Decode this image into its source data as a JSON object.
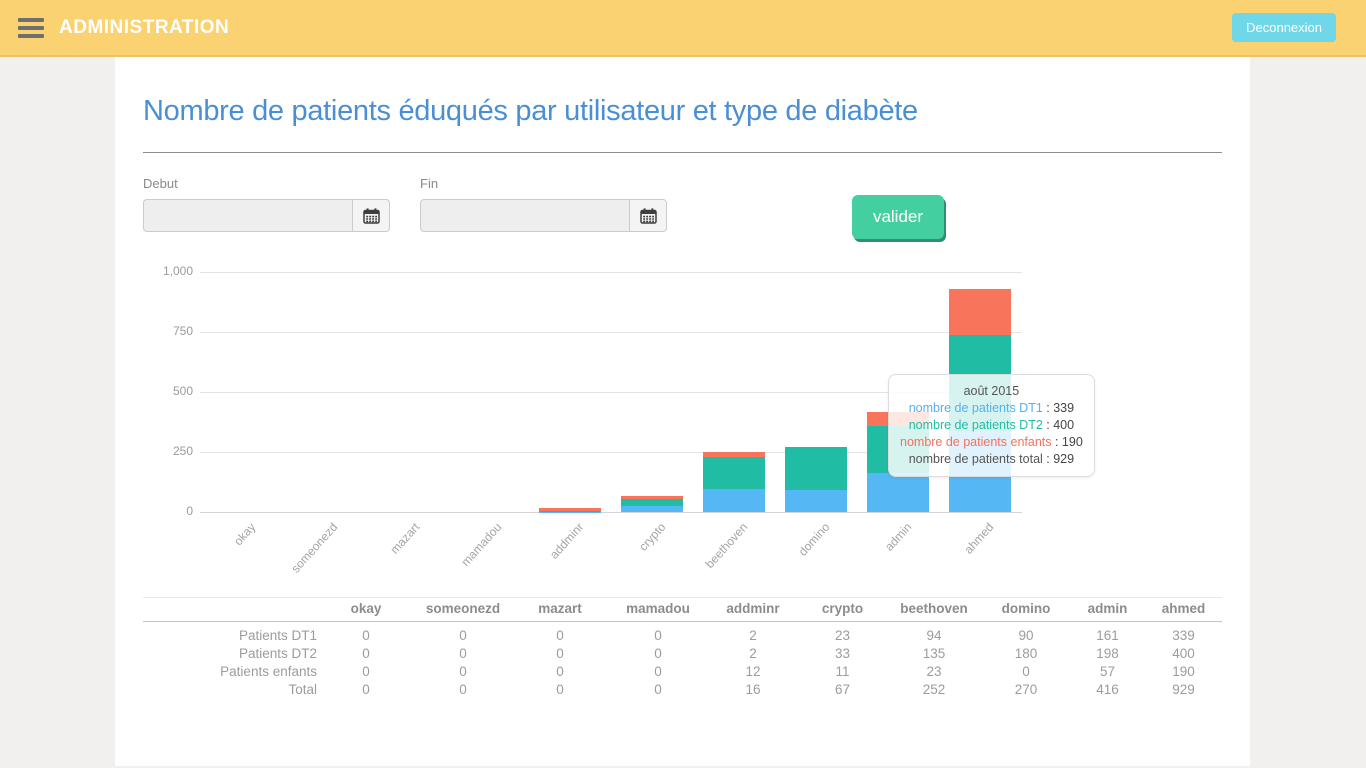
{
  "header": {
    "app_title": "ADMINISTRATION",
    "logout_label": "Deconnexion"
  },
  "page": {
    "title": "Nombre de patients éduqués par utilisateur et type de diabète"
  },
  "filters": {
    "debut": {
      "label": "Debut",
      "value": ""
    },
    "fin": {
      "label": "Fin",
      "value": ""
    },
    "submit_label": "valider"
  },
  "chart_data": {
    "type": "bar",
    "stacked": true,
    "title": "",
    "xlabel": "",
    "ylabel": "",
    "categories": [
      "okay",
      "someonezd",
      "mazart",
      "mamadou",
      "addminr",
      "crypto",
      "beethoven",
      "domino",
      "admin",
      "ahmed"
    ],
    "series": [
      {
        "name": "nombre de patients DT1",
        "color": "#55B7F3",
        "values": [
          0,
          0,
          0,
          0,
          2,
          23,
          94,
          90,
          161,
          339
        ]
      },
      {
        "name": "nombre de patients DT2",
        "color": "#20BCA4",
        "values": [
          0,
          0,
          0,
          0,
          2,
          33,
          135,
          180,
          198,
          400
        ]
      },
      {
        "name": "nombre de patients enfants",
        "color": "#F8755B",
        "values": [
          0,
          0,
          0,
          0,
          12,
          11,
          23,
          0,
          57,
          190
        ]
      }
    ],
    "ylim": [
      0,
      1000
    ],
    "yticks": [
      {
        "value": 0,
        "label": "0"
      },
      {
        "value": 250,
        "label": "250"
      },
      {
        "value": 500,
        "label": "500"
      },
      {
        "value": 750,
        "label": "750"
      },
      {
        "value": 1000,
        "label": "1,000"
      }
    ],
    "grid": true,
    "legend_position": "none"
  },
  "tooltip": {
    "title": "août 2015",
    "separator": " : ",
    "lines": [
      {
        "label": "nombre de patients DT1",
        "value": "339",
        "color": "#55B0F0"
      },
      {
        "label": "nombre de patients DT2",
        "value": "400",
        "color": "#21BCA5"
      },
      {
        "label": "nombre de patients enfants",
        "value": "190",
        "color": "#F8705A"
      },
      {
        "label": "nombre de patients total",
        "value": "929",
        "color": "#555555"
      }
    ]
  },
  "table": {
    "columns": [
      "okay",
      "someonezd",
      "mazart",
      "mamadou",
      "addminr",
      "crypto",
      "beethoven",
      "domino",
      "admin",
      "ahmed"
    ],
    "rows": [
      {
        "label": "Patients DT1",
        "values": [
          "0",
          "0",
          "0",
          "0",
          "2",
          "23",
          "94",
          "90",
          "161",
          "339"
        ]
      },
      {
        "label": "Patients DT2",
        "values": [
          "0",
          "0",
          "0",
          "0",
          "2",
          "33",
          "135",
          "180",
          "198",
          "400"
        ]
      },
      {
        "label": "Patients enfants",
        "values": [
          "0",
          "0",
          "0",
          "0",
          "12",
          "11",
          "23",
          "0",
          "57",
          "190"
        ]
      },
      {
        "label": "Total",
        "values": [
          "0",
          "0",
          "0",
          "0",
          "16",
          "67",
          "252",
          "270",
          "416",
          "929"
        ]
      }
    ]
  },
  "colors": {
    "header_bg": "#FBD271",
    "logout_bg": "#70D7E9",
    "title_text": "#4A8FD6",
    "submit_bg": "#44CFA0",
    "bar_dt1": "#55B7F3",
    "bar_dt2": "#20BCA4",
    "bar_enfants": "#F8755B",
    "page_bg": "#F1F0EF"
  }
}
